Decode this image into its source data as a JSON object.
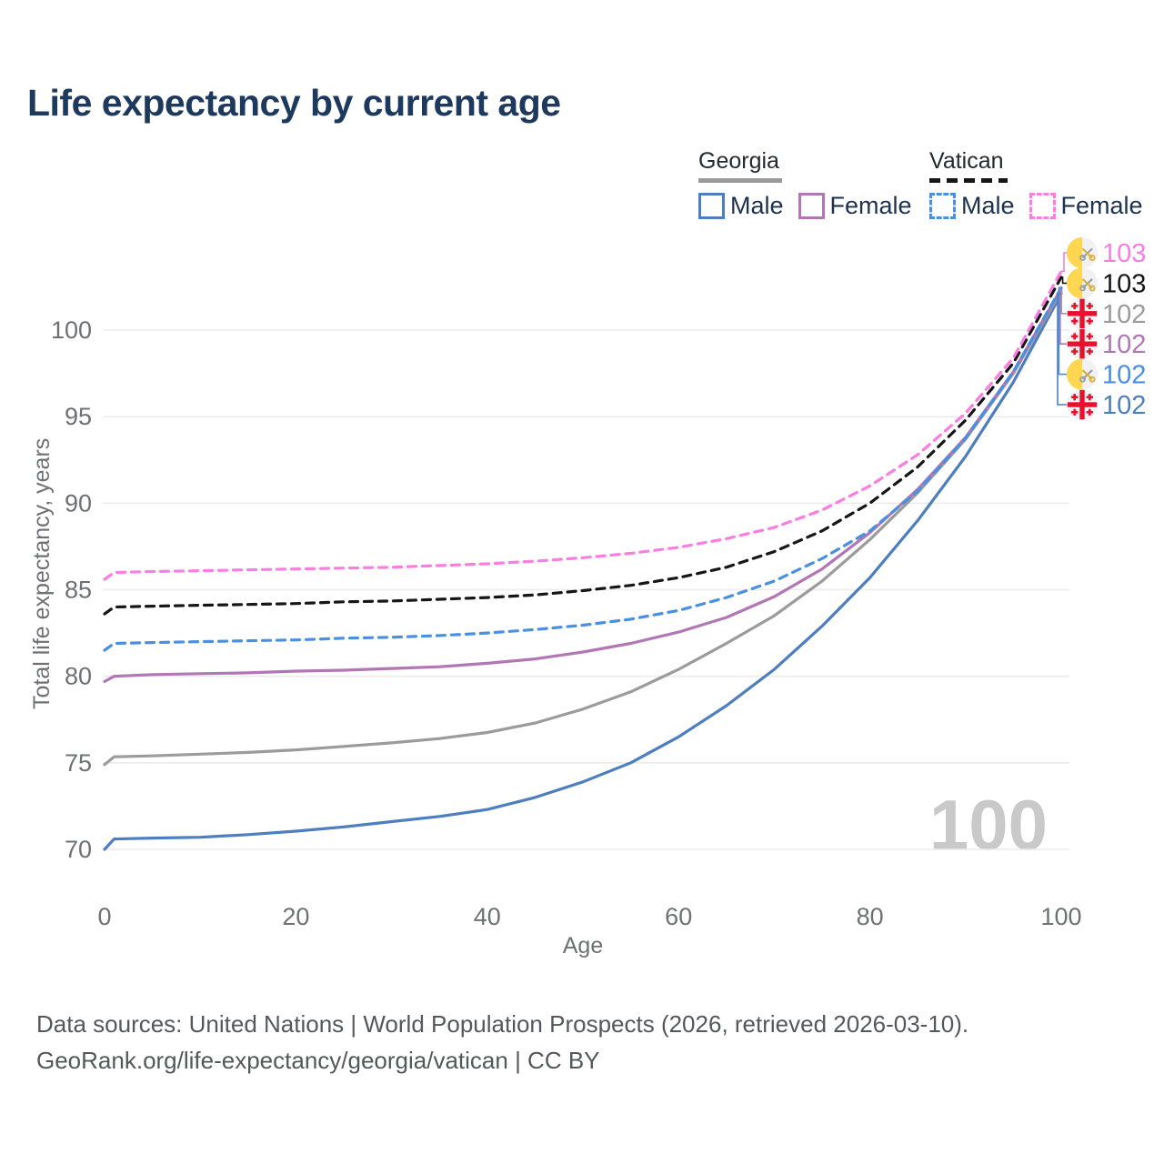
{
  "title": "Life expectancy by current age",
  "watermark": "100",
  "legend": {
    "georgia": {
      "label": "Georgia",
      "male": "Male",
      "female": "Female"
    },
    "vatican": {
      "label": "Vatican",
      "male": "Male",
      "female": "Female"
    }
  },
  "footer": {
    "line1": "Data sources: United Nations | World Population Prospects (2026, retrieved 2026-03-10).",
    "line2": "GeoRank.org/life-expectancy/georgia/vatican | CC BY"
  },
  "colors": {
    "georgia_male": "#4d7ec0",
    "georgia_female": "#b077b4",
    "georgia_total": "#9b9b9b",
    "vatican_male": "#4a90e2",
    "vatican_female": "#fb7de2",
    "vatican_total": "#161616",
    "title": "#1d3a5e",
    "axis_text": "#6e7073",
    "grid": "#ececec",
    "watermark": "#c9c9c9",
    "georgia_flag_red": "#e8112d",
    "vatican_flag_yellow": "#ffd64f"
  },
  "chart_data": {
    "type": "line",
    "title": "Life expectancy by current age",
    "xlabel": "Age",
    "ylabel": "Total life expectancy, years",
    "xlim": [
      0,
      100
    ],
    "ylim": [
      68,
      104
    ],
    "xticks": [
      0,
      20,
      40,
      60,
      80,
      100
    ],
    "yticks": [
      70,
      75,
      80,
      85,
      90,
      95,
      100
    ],
    "grid": "horizontal-only",
    "legend_position": "top-right",
    "x": [
      0,
      1,
      5,
      10,
      15,
      20,
      25,
      30,
      35,
      40,
      45,
      50,
      55,
      60,
      65,
      70,
      75,
      80,
      85,
      90,
      95,
      100
    ],
    "series": [
      {
        "name": "Georgia Male",
        "country": "Georgia",
        "sex": "Male",
        "color": "#4d7ec0",
        "dash": false,
        "values": [
          70.0,
          70.6,
          70.65,
          70.7,
          70.85,
          71.05,
          71.3,
          71.6,
          71.9,
          72.3,
          73.0,
          73.9,
          75.0,
          76.5,
          78.3,
          80.4,
          82.9,
          85.7,
          89.0,
          92.7,
          97.0,
          102.1
        ]
      },
      {
        "name": "Georgia",
        "country": "Georgia",
        "sex": "Both",
        "color": "#9b9b9b",
        "dash": false,
        "values": [
          74.9,
          75.35,
          75.4,
          75.5,
          75.6,
          75.75,
          75.95,
          76.15,
          76.4,
          76.75,
          77.3,
          78.1,
          79.1,
          80.4,
          81.9,
          83.5,
          85.5,
          87.9,
          90.6,
          93.7,
          97.5,
          102.25
        ]
      },
      {
        "name": "Georgia Female",
        "country": "Georgia",
        "sex": "Female",
        "color": "#b077b4",
        "dash": false,
        "values": [
          79.7,
          80.0,
          80.1,
          80.15,
          80.2,
          80.3,
          80.35,
          80.45,
          80.55,
          80.75,
          81.0,
          81.4,
          81.9,
          82.55,
          83.4,
          84.6,
          86.2,
          88.3,
          90.8,
          93.8,
          97.6,
          102.4
        ]
      },
      {
        "name": "Vatican Male",
        "country": "Vatican",
        "sex": "Male",
        "color": "#4a90e2",
        "dash": true,
        "values": [
          81.5,
          81.9,
          81.95,
          82.0,
          82.05,
          82.1,
          82.2,
          82.25,
          82.35,
          82.5,
          82.7,
          82.95,
          83.3,
          83.8,
          84.55,
          85.5,
          86.8,
          88.4,
          90.7,
          93.75,
          97.6,
          102.45
        ]
      },
      {
        "name": "Vatican",
        "country": "Vatican",
        "sex": "Both",
        "color": "#161616",
        "dash": true,
        "values": [
          83.6,
          84.0,
          84.05,
          84.1,
          84.15,
          84.2,
          84.3,
          84.35,
          84.45,
          84.55,
          84.7,
          84.95,
          85.25,
          85.7,
          86.3,
          87.2,
          88.4,
          90.0,
          92.1,
          94.8,
          98.1,
          103.05
        ]
      },
      {
        "name": "Vatican Female",
        "country": "Vatican",
        "sex": "Female",
        "color": "#fb7de2",
        "dash": true,
        "values": [
          85.6,
          86.0,
          86.05,
          86.1,
          86.15,
          86.2,
          86.25,
          86.3,
          86.4,
          86.5,
          86.65,
          86.85,
          87.1,
          87.45,
          87.95,
          88.6,
          89.6,
          91.0,
          92.8,
          95.2,
          98.4,
          103.4
        ]
      }
    ],
    "end_labels": [
      {
        "series": "Vatican Female",
        "value": "103",
        "flag": "vatican"
      },
      {
        "series": "Vatican",
        "value": "103",
        "flag": "vatican"
      },
      {
        "series": "Georgia",
        "value": "102",
        "flag": "georgia"
      },
      {
        "series": "Georgia Female",
        "value": "102",
        "flag": "georgia"
      },
      {
        "series": "Vatican Male",
        "value": "102",
        "flag": "vatican"
      },
      {
        "series": "Georgia Male",
        "value": "102",
        "flag": "georgia"
      }
    ]
  }
}
